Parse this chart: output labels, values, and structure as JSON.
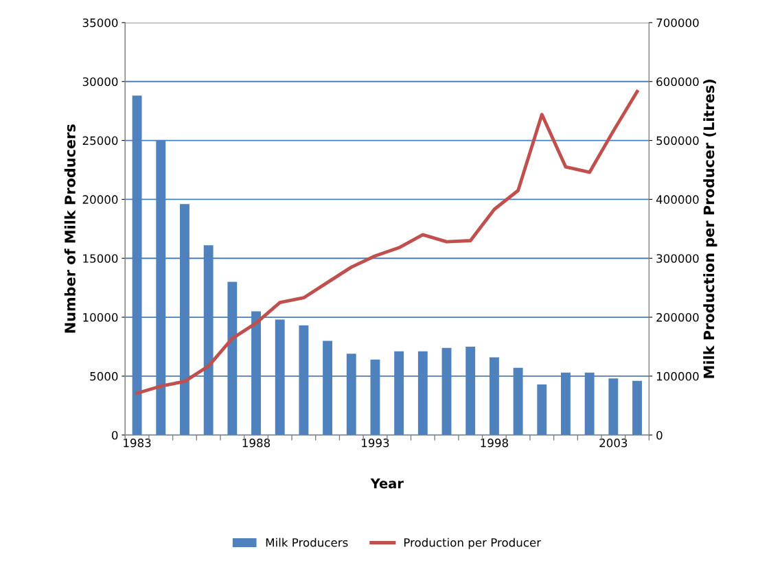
{
  "chart_data": {
    "type": "bar",
    "xlabel": "Year",
    "ylabel": "Number of Milk Producers",
    "y2label": "Milk Production per Producer (Litres)",
    "categories": [
      "1983",
      null,
      null,
      null,
      null,
      "1988",
      null,
      null,
      null,
      null,
      "1993",
      null,
      null,
      null,
      null,
      "1998",
      null,
      null,
      null,
      null,
      "2003",
      null
    ],
    "series": [
      {
        "name": "Milk Producers",
        "color": "#4f81bd",
        "values": [
          28800,
          25000,
          19600,
          16100,
          13000,
          10500,
          9800,
          9300,
          8000,
          6900,
          6400,
          7100,
          7100,
          7400,
          7500,
          6600,
          5700,
          4300,
          5300,
          5300,
          4800,
          4600
        ]
      },
      {
        "name": "Production per Producer",
        "type": "line",
        "axis": "y2",
        "color": "#c0504d",
        "values": [
          71000,
          83000,
          91000,
          117000,
          164000,
          190000,
          225000,
          233000,
          259000,
          285000,
          304000,
          318000,
          340000,
          328000,
          330000,
          383000,
          415000,
          544000,
          455000,
          446000,
          516000,
          583000
        ]
      }
    ],
    "ylim": [
      0,
      35000
    ],
    "yticks": [
      0,
      5000,
      10000,
      15000,
      20000,
      25000,
      30000,
      35000
    ],
    "y2lim": [
      0,
      700000
    ],
    "y2ticks": [
      0,
      100000,
      200000,
      300000,
      400000,
      500000,
      600000,
      700000
    ],
    "grid": "y",
    "legend": "bottom",
    "marker": "none",
    "line_style": "solid"
  }
}
